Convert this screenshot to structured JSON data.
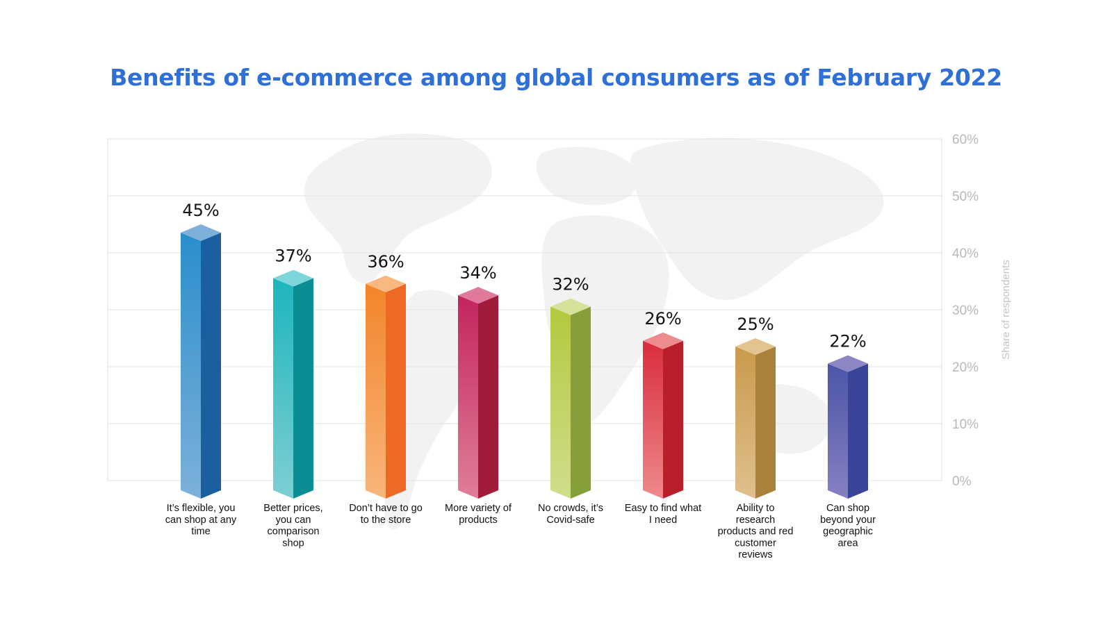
{
  "chart_data": {
    "type": "bar",
    "title": "Benefits of e-commerce among global consumers as of February 2022",
    "ylabel": "Share of respondents",
    "ylim": [
      0,
      60
    ],
    "yticks": [
      "0%",
      "10%",
      "20%",
      "30%",
      "40%",
      "50%",
      "60%"
    ],
    "ytick_values": [
      0,
      10,
      20,
      30,
      40,
      50,
      60
    ],
    "y_axis_position": "right",
    "grid": true,
    "categories": [
      [
        "It’s flexible, you",
        "can shop at any",
        "time"
      ],
      [
        "Better prices,",
        "you can",
        "comparison",
        "shop"
      ],
      [
        "Don’t have to go",
        "to the store"
      ],
      [
        "More variety of",
        "products"
      ],
      [
        "No crowds, it’s",
        "Covid-safe"
      ],
      [
        "Easy to find what",
        "I need"
      ],
      [
        "Ability to",
        "research",
        "products and red",
        "customer",
        "reviews"
      ],
      [
        "Can shop",
        "beyond your",
        "geographic",
        "area"
      ]
    ],
    "values": [
      45,
      37,
      36,
      34,
      32,
      26,
      25,
      22
    ],
    "value_labels": [
      "45%",
      "37%",
      "36%",
      "34%",
      "32%",
      "26%",
      "25%",
      "22%"
    ],
    "colors": [
      {
        "top": "#7fb0da",
        "front_top": "#2a8ecb",
        "front_bottom": "#7db1da",
        "side": "#1a5f9f"
      },
      {
        "top": "#7fd6d8",
        "front_top": "#1cb5bd",
        "front_bottom": "#7ecfd2",
        "side": "#0a8e94"
      },
      {
        "top": "#f8b880",
        "front_top": "#f3852a",
        "front_bottom": "#f8b57a",
        "side": "#ee6a24"
      },
      {
        "top": "#e07a9a",
        "front_top": "#c4245e",
        "front_bottom": "#df7f98",
        "side": "#a01c3a"
      },
      {
        "top": "#d5e39a",
        "front_top": "#b3c83e",
        "front_bottom": "#d0de8c",
        "side": "#85a03a"
      },
      {
        "top": "#ee8b8e",
        "front_top": "#d92c3c",
        "front_bottom": "#ee8a8c",
        "side": "#b81f2a"
      },
      {
        "top": "#e3c491",
        "front_top": "#c99a4c",
        "front_bottom": "#e0c08e",
        "side": "#a8823a"
      },
      {
        "top": "#8e87c6",
        "front_top": "#4b55a7",
        "front_bottom": "#8680c2",
        "side": "#3a4498"
      }
    ]
  }
}
